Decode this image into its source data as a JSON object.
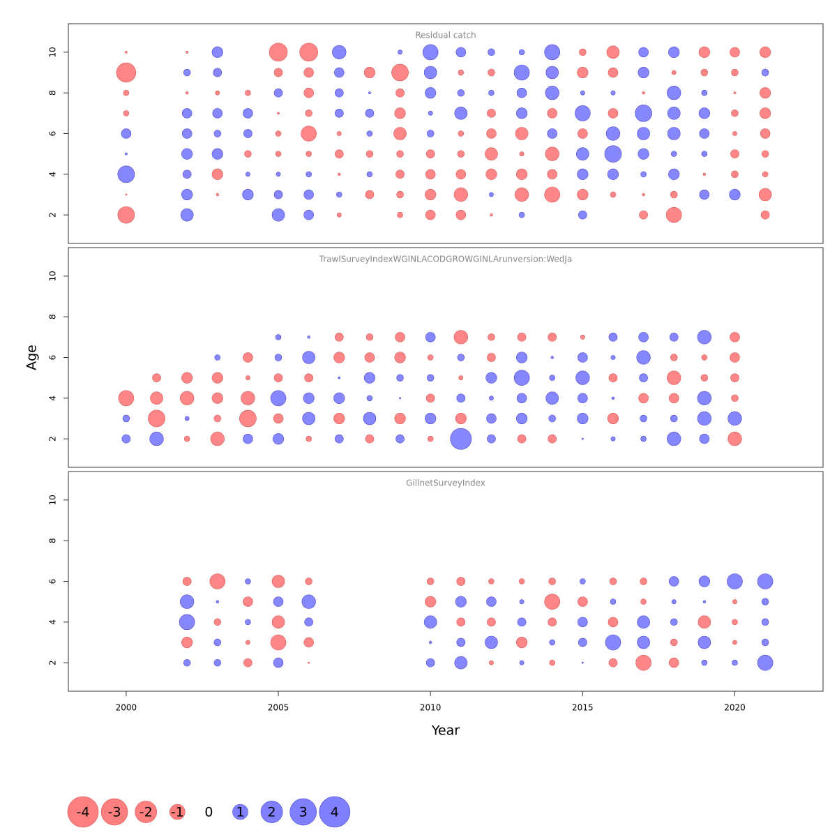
{
  "chart_data": [
    {
      "type": "bubble",
      "title": "Residual catch",
      "x": [
        2000,
        2002,
        2003,
        2004,
        2005,
        2006,
        2007,
        2008,
        2009,
        2010,
        2011,
        2012,
        2013,
        2014,
        2015,
        2016,
        2017,
        2018,
        2019,
        2020,
        2021
      ],
      "y": [
        2,
        3,
        4,
        5,
        6,
        7,
        8,
        9,
        10
      ],
      "values": [
        [
          -1.2,
          -0.01,
          1.2,
          0.02,
          0.4,
          -0.13,
          -0.13,
          -1.6,
          -0.02
        ],
        [
          0.67,
          0.5,
          0.3,
          0.5,
          0.4,
          0.4,
          -0.03,
          0.2,
          -0.02
        ],
        [
          null,
          -0.03,
          -0.5,
          0.5,
          0.2,
          0.4,
          -0.08,
          0.3,
          0.5
        ],
        [
          null,
          0.5,
          0.08,
          -0.2,
          0.3,
          0.4,
          -0.13,
          null,
          null
        ],
        [
          0.67,
          0.3,
          0.08,
          -0.13,
          -0.13,
          -0.02,
          0.3,
          -0.3,
          -1.4
        ],
        [
          0.4,
          0.4,
          0.13,
          -0.13,
          -1.0,
          -0.2,
          -0.4,
          -0.4,
          -1.4
        ],
        [
          -0.08,
          0.13,
          -0.03,
          -0.3,
          -0.08,
          0.3,
          0.3,
          0.4,
          0.8
        ],
        [
          null,
          -0.3,
          0.13,
          -0.2,
          0.13,
          0.3,
          0.02,
          -0.5,
          null
        ],
        [
          -0.13,
          -0.2,
          -0.3,
          -0.2,
          -0.67,
          -0.5,
          -0.3,
          -1.2,
          0.08
        ],
        [
          -0.4,
          -0.5,
          -0.4,
          -0.3,
          0.2,
          0.08,
          0.5,
          0.67,
          1.0
        ],
        [
          -0.4,
          -0.8,
          -0.4,
          -0.2,
          -0.13,
          0.67,
          0.2,
          -0.13,
          0.4
        ],
        [
          -0.03,
          0.08,
          -0.5,
          -0.67,
          -0.4,
          -0.3,
          0.13,
          -0.2,
          0.2
        ],
        [
          0.13,
          -0.8,
          -0.5,
          -0.08,
          -0.67,
          0.5,
          0.4,
          1.0,
          0.13
        ],
        [
          null,
          -1.0,
          -0.4,
          -0.8,
          0.4,
          -0.4,
          0.8,
          0.67,
          1.0
        ],
        [
          0.3,
          -0.5,
          0.5,
          0.67,
          -0.4,
          1.0,
          0.08,
          -0.5,
          -0.2
        ],
        [
          null,
          -0.13,
          0.5,
          1.2,
          0.8,
          -0.4,
          0.08,
          -0.4,
          -0.67
        ],
        [
          -0.3,
          -0.03,
          0.13,
          0.5,
          0.67,
          1.2,
          -0.03,
          0.5,
          0.4
        ],
        [
          -1.0,
          -0.2,
          0.5,
          0.13,
          0.67,
          0.67,
          0.8,
          -0.08,
          0.5
        ],
        [
          null,
          0.4,
          -0.03,
          0.13,
          0.4,
          0.5,
          0.13,
          -0.2,
          -0.5
        ],
        [
          null,
          0.5,
          -0.2,
          -0.3,
          -0.08,
          -0.2,
          -0.02,
          -0.2,
          -0.4
        ],
        [
          -0.3,
          -0.67,
          -0.13,
          -0.2,
          -0.4,
          -0.5,
          -0.5,
          0.2,
          -0.5
        ]
      ],
      "xlim": [
        1998.1,
        2022.9
      ],
      "ylim": [
        0.6,
        11.4
      ],
      "yticks": [
        2,
        4,
        6,
        8,
        10
      ],
      "colors": {
        "positive": "#7f7fff",
        "negative": "#ff7f7f"
      }
    },
    {
      "type": "bubble",
      "title": "TrawlSurveyIndexWGINLACODGROWGINLArunversion:WedJa",
      "ylabel": "Age",
      "x": [
        2000,
        2001,
        2002,
        2003,
        2004,
        2005,
        2006,
        2007,
        2008,
        2009,
        2010,
        2011,
        2012,
        2013,
        2014,
        2015,
        2016,
        2017,
        2018,
        2019,
        2020
      ],
      "y": [
        2,
        3,
        4,
        5,
        6,
        7
      ],
      "values": [
        [
          0.3,
          0.2,
          -1.0,
          null,
          null,
          null
        ],
        [
          0.8,
          -1.2,
          -0.67,
          -0.3,
          null,
          null
        ],
        [
          -0.13,
          0.08,
          -0.8,
          -0.5,
          null,
          null
        ],
        [
          -0.8,
          -0.2,
          -0.5,
          -0.5,
          0.13,
          null
        ],
        [
          0.4,
          -1.2,
          -0.8,
          -0.08,
          -0.4,
          null
        ],
        [
          0.5,
          -0.4,
          1.0,
          -0.3,
          0.2,
          0.13
        ],
        [
          -0.13,
          0.67,
          0.5,
          -0.3,
          0.67,
          0.03
        ],
        [
          0.3,
          -0.5,
          0.5,
          0.02,
          -0.5,
          -0.3
        ],
        [
          -0.3,
          0.67,
          0.13,
          0.5,
          -0.4,
          -0.2
        ],
        [
          0.3,
          -0.5,
          0.01,
          0.2,
          -0.5,
          -0.4
        ],
        [
          -0.13,
          0.5,
          -0.3,
          0.2,
          -0.13,
          0.4
        ],
        [
          1.9,
          -0.5,
          0.3,
          -0.08,
          0.2,
          -0.8
        ],
        [
          0.3,
          0.4,
          0.08,
          0.5,
          -0.3,
          -0.2
        ],
        [
          -0.3,
          0.5,
          0.4,
          1.0,
          0.5,
          -0.3
        ],
        [
          -0.3,
          0.2,
          0.67,
          0.13,
          0.03,
          -0.3
        ],
        [
          0.01,
          0.5,
          0.4,
          0.8,
          0.4,
          -0.08
        ],
        [
          0.08,
          -0.5,
          0.03,
          -0.3,
          0.08,
          0.3
        ],
        [
          0.13,
          0.2,
          -0.4,
          0.3,
          0.8,
          0.4
        ],
        [
          0.8,
          0.2,
          -0.4,
          -0.8,
          -0.2,
          0.3
        ],
        [
          0.4,
          0.8,
          0.8,
          -0.2,
          -0.13,
          0.8
        ],
        [
          -0.8,
          0.8,
          -0.2,
          -0.3,
          -0.4,
          -0.4
        ]
      ],
      "xlim": [
        1998.1,
        2022.9
      ],
      "ylim": [
        0.6,
        11.4
      ],
      "yticks": [
        2,
        4,
        6,
        8,
        10
      ],
      "colors": {
        "positive": "#7f7fff",
        "negative": "#ff7f7f"
      }
    },
    {
      "type": "bubble",
      "title": "GillnetSurveyIndex",
      "xlabel": "Year",
      "x": [
        2002,
        2003,
        2004,
        2005,
        2006,
        2010,
        2011,
        2012,
        2013,
        2014,
        2015,
        2016,
        2017,
        2018,
        2019,
        2020,
        2021
      ],
      "y": [
        2,
        3,
        4,
        5,
        6
      ],
      "values": [
        [
          0.2,
          -0.5,
          1.0,
          0.8,
          -0.3
        ],
        [
          0.2,
          0.2,
          -0.2,
          0.03,
          -1.0
        ],
        [
          -0.3,
          -0.08,
          0.13,
          -0.4,
          0.13
        ],
        [
          0.4,
          -1.0,
          -0.67,
          0.4,
          -0.67
        ],
        [
          -0.01,
          -0.4,
          0.3,
          0.8,
          -0.2
        ],
        [
          0.3,
          0.03,
          0.67,
          -0.5,
          -0.2
        ],
        [
          0.67,
          0.3,
          -0.3,
          0.5,
          -0.3
        ],
        [
          -0.08,
          0.67,
          -0.3,
          0.4,
          -0.13
        ],
        [
          0.08,
          -0.5,
          0.3,
          0.08,
          -0.13
        ],
        [
          -0.13,
          0.13,
          -0.3,
          -1.0,
          -0.2
        ],
        [
          0.01,
          0.3,
          0.4,
          -0.4,
          0.13
        ],
        [
          -0.3,
          1.0,
          -0.4,
          0.13,
          -0.2
        ],
        [
          -1.0,
          0.67,
          0.67,
          -0.13,
          -0.2
        ],
        [
          -0.4,
          -0.2,
          0.2,
          0.08,
          0.4
        ],
        [
          0.13,
          0.67,
          -0.67,
          0.03,
          0.5
        ],
        [
          0.13,
          -0.08,
          -0.13,
          -0.08,
          1.0
        ],
        [
          1.0,
          0.2,
          0.2,
          0.2,
          1.0
        ]
      ],
      "xlim": [
        1998.1,
        2022.9
      ],
      "ylim": [
        0.6,
        11.4
      ],
      "yticks": [
        2,
        4,
        6,
        8,
        10
      ],
      "xticks": [
        2000,
        2005,
        2010,
        2015,
        2020
      ],
      "colors": {
        "positive": "#7f7fff",
        "negative": "#ff7f7f"
      }
    }
  ],
  "legend": {
    "values": [
      -4,
      -3,
      -2,
      -1,
      0,
      1,
      2,
      3,
      4
    ]
  }
}
